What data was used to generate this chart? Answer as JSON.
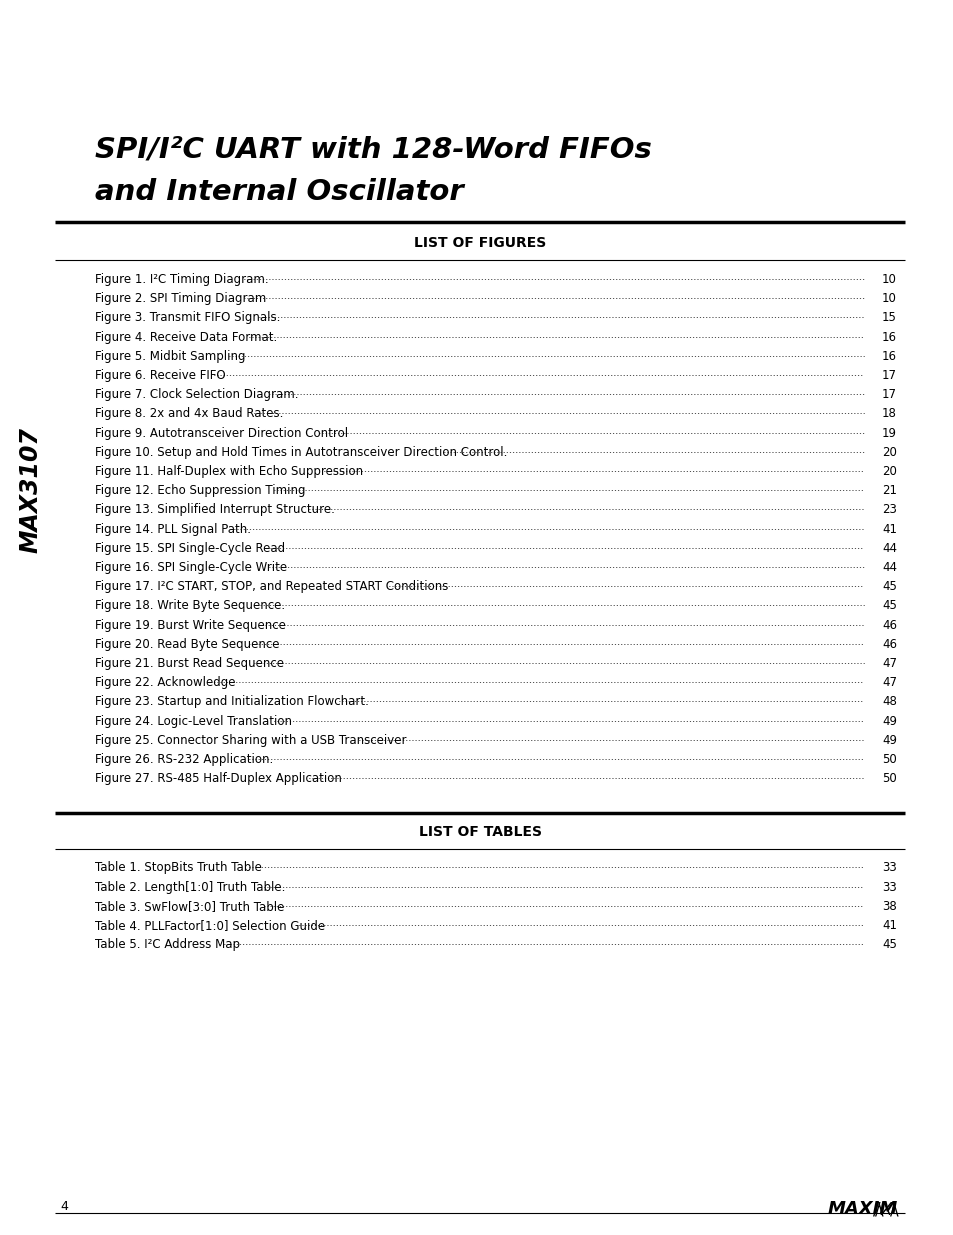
{
  "title_line1": "SPI/I²C UART with 128-Word FIFOs",
  "title_line2": "and Internal Oscillator",
  "sidebar_text": "MAX3107",
  "section1_header": "LIST OF FIGURES",
  "figures": [
    {
      "label": "Figure 1. I²C Timing Diagram.",
      "page": "10"
    },
    {
      "label": "Figure 2. SPI Timing Diagram ",
      "page": "10"
    },
    {
      "label": "Figure 3. Transmit FIFO Signals.",
      "page": "15"
    },
    {
      "label": "Figure 4. Receive Data Format.",
      "page": "16"
    },
    {
      "label": "Figure 5. Midbit Sampling ",
      "page": "16"
    },
    {
      "label": "Figure 6. Receive FIFO ",
      "page": "17"
    },
    {
      "label": "Figure 7. Clock Selection Diagram.",
      "page": "17"
    },
    {
      "label": "Figure 8. 2x and 4x Baud Rates.",
      "page": "18"
    },
    {
      "label": "Figure 9. Autotransceiver Direction Control ",
      "page": "19"
    },
    {
      "label": "Figure 10. Setup and Hold Times in Autotransceiver Direction Control.",
      "page": "20"
    },
    {
      "label": "Figure 11. Half-Duplex with Echo Suppression ",
      "page": "20"
    },
    {
      "label": "Figure 12. Echo Suppression Timing ",
      "page": "21"
    },
    {
      "label": "Figure 13. Simplified Interrupt Structure.",
      "page": "23"
    },
    {
      "label": "Figure 14. PLL Signal Path.",
      "page": "41"
    },
    {
      "label": "Figure 15. SPI Single-Cycle Read ",
      "page": "44"
    },
    {
      "label": "Figure 16. SPI Single-Cycle Write ",
      "page": "44"
    },
    {
      "label": "Figure 17. I²C START, STOP, and Repeated START Conditions ",
      "page": "45"
    },
    {
      "label": "Figure 18. Write Byte Sequence.",
      "page": "45"
    },
    {
      "label": "Figure 19. Burst Write Sequence ",
      "page": "46"
    },
    {
      "label": "Figure 20. Read Byte Sequence ",
      "page": "46"
    },
    {
      "label": "Figure 21. Burst Read Sequence ",
      "page": "47"
    },
    {
      "label": "Figure 22. Acknowledge ",
      "page": "47"
    },
    {
      "label": "Figure 23. Startup and Initialization Flowchart.",
      "page": "48"
    },
    {
      "label": "Figure 24. Logic-Level Translation ",
      "page": "49"
    },
    {
      "label": "Figure 25. Connector Sharing with a USB Transceiver ",
      "page": "49"
    },
    {
      "label": "Figure 26. RS-232 Application.",
      "page": "50"
    },
    {
      "label": "Figure 27. RS-485 Half-Duplex Application ",
      "page": "50"
    }
  ],
  "section2_header": "LIST OF TABLES",
  "tables": [
    {
      "label": "Table 1. StopBits Truth Table ",
      "page": "33"
    },
    {
      "label": "Table 2. Length[1:0] Truth Table.",
      "page": "33"
    },
    {
      "label": "Table 3. SwFlow[3:0] Truth Table ",
      "page": "38"
    },
    {
      "label": "Table 4. PLLFactor[1:0] Selection Guide ",
      "page": "41"
    },
    {
      "label": "Table 5. I²C Address Map ",
      "page": "45"
    }
  ],
  "page_number": "4",
  "bg_color": "#ffffff",
  "text_color": "#000000"
}
